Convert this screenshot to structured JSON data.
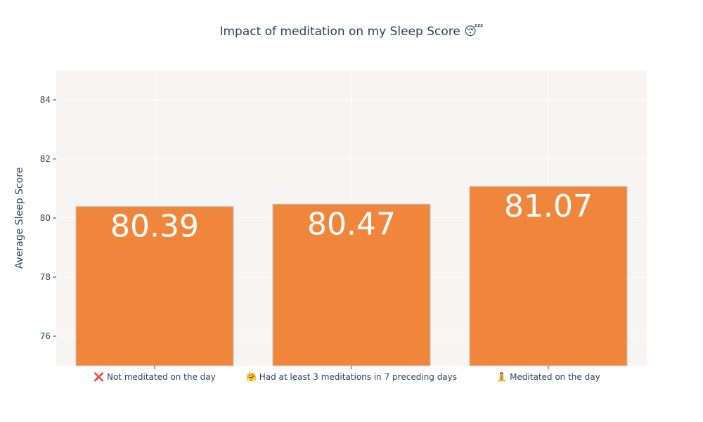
{
  "chart_data": {
    "type": "bar",
    "title": "Impact of meditation on my Sleep Score 😴",
    "xlabel": "",
    "ylabel": "Average Sleep Score",
    "ylim": [
      75,
      85
    ],
    "yticks": [
      76,
      78,
      80,
      82,
      84
    ],
    "grid": true,
    "legend": "none",
    "categories": [
      "❌ Not meditated on the day",
      "🤗 Had at least 3 meditations in 7 preceding days",
      "🧘 Meditated on the day"
    ],
    "values": [
      80.39,
      80.47,
      81.07
    ],
    "data_labels": [
      "80.39",
      "80.47",
      "81.07"
    ],
    "colors": {
      "bar": "#f0863c",
      "bar_stroke": "#c9c2bd",
      "plot_bg": "#f7f5f3",
      "grid": "#ffffff",
      "label": "#ffffff",
      "text": "#2a3f5f"
    }
  }
}
